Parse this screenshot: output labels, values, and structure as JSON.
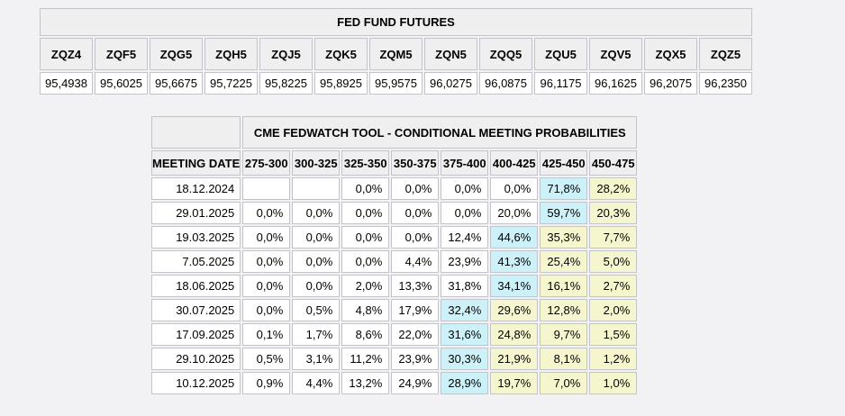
{
  "colors": {
    "page_bg": "#f2f2f4",
    "cell_border": "#c3c3cb",
    "header_bg": "#efeff0",
    "cell_bg": "#ffffff",
    "highlight_cyan": "#cdf1f8",
    "highlight_yellow": "#f6f6ce"
  },
  "futures": {
    "title": "FED FUND FUTURES",
    "columns": [
      "ZQZ4",
      "ZQF5",
      "ZQG5",
      "ZQH5",
      "ZQJ5",
      "ZQK5",
      "ZQM5",
      "ZQN5",
      "ZQQ5",
      "ZQU5",
      "ZQV5",
      "ZQX5",
      "ZQZ5"
    ],
    "values": [
      "95,4938",
      "95,6025",
      "95,6675",
      "95,7225",
      "95,8225",
      "95,8925",
      "95,9575",
      "96,0275",
      "96,0875",
      "96,1175",
      "96,1625",
      "96,2075",
      "96,2350"
    ]
  },
  "fedwatch": {
    "title": "CME FEDWATCH TOOL - CONDITIONAL MEETING PROBABILITIES",
    "date_header": "MEETING DATE",
    "rate_headers": [
      "275-300",
      "300-325",
      "325-350",
      "350-375",
      "375-400",
      "400-425",
      "425-450",
      "450-475"
    ],
    "rows": [
      {
        "date": "18.12.2024",
        "cells": [
          {
            "text": "",
            "hl": ""
          },
          {
            "text": "",
            "hl": ""
          },
          {
            "text": "0,0%",
            "hl": ""
          },
          {
            "text": "0,0%",
            "hl": ""
          },
          {
            "text": "0,0%",
            "hl": ""
          },
          {
            "text": "0,0%",
            "hl": ""
          },
          {
            "text": "71,8%",
            "hl": "cyan"
          },
          {
            "text": "28,2%",
            "hl": "yellow"
          }
        ]
      },
      {
        "date": "29.01.2025",
        "cells": [
          {
            "text": "0,0%",
            "hl": ""
          },
          {
            "text": "0,0%",
            "hl": ""
          },
          {
            "text": "0,0%",
            "hl": ""
          },
          {
            "text": "0,0%",
            "hl": ""
          },
          {
            "text": "0,0%",
            "hl": ""
          },
          {
            "text": "20,0%",
            "hl": ""
          },
          {
            "text": "59,7%",
            "hl": "cyan"
          },
          {
            "text": "20,3%",
            "hl": "yellow"
          }
        ]
      },
      {
        "date": "19.03.2025",
        "cells": [
          {
            "text": "0,0%",
            "hl": ""
          },
          {
            "text": "0,0%",
            "hl": ""
          },
          {
            "text": "0,0%",
            "hl": ""
          },
          {
            "text": "0,0%",
            "hl": ""
          },
          {
            "text": "12,4%",
            "hl": ""
          },
          {
            "text": "44,6%",
            "hl": "cyan"
          },
          {
            "text": "35,3%",
            "hl": "yellow"
          },
          {
            "text": "7,7%",
            "hl": "yellow"
          }
        ]
      },
      {
        "date": "7.05.2025",
        "cells": [
          {
            "text": "0,0%",
            "hl": ""
          },
          {
            "text": "0,0%",
            "hl": ""
          },
          {
            "text": "0,0%",
            "hl": ""
          },
          {
            "text": "4,4%",
            "hl": ""
          },
          {
            "text": "23,9%",
            "hl": ""
          },
          {
            "text": "41,3%",
            "hl": "cyan"
          },
          {
            "text": "25,4%",
            "hl": "yellow"
          },
          {
            "text": "5,0%",
            "hl": "yellow"
          }
        ]
      },
      {
        "date": "18.06.2025",
        "cells": [
          {
            "text": "0,0%",
            "hl": ""
          },
          {
            "text": "0,0%",
            "hl": ""
          },
          {
            "text": "2,0%",
            "hl": ""
          },
          {
            "text": "13,3%",
            "hl": ""
          },
          {
            "text": "31,8%",
            "hl": ""
          },
          {
            "text": "34,1%",
            "hl": "cyan"
          },
          {
            "text": "16,1%",
            "hl": "yellow"
          },
          {
            "text": "2,7%",
            "hl": "yellow"
          }
        ]
      },
      {
        "date": "30.07.2025",
        "cells": [
          {
            "text": "0,0%",
            "hl": ""
          },
          {
            "text": "0,5%",
            "hl": ""
          },
          {
            "text": "4,8%",
            "hl": ""
          },
          {
            "text": "17,9%",
            "hl": ""
          },
          {
            "text": "32,4%",
            "hl": "cyan"
          },
          {
            "text": "29,6%",
            "hl": "yellow"
          },
          {
            "text": "12,8%",
            "hl": "yellow"
          },
          {
            "text": "2,0%",
            "hl": "yellow"
          }
        ]
      },
      {
        "date": "17.09.2025",
        "cells": [
          {
            "text": "0,1%",
            "hl": ""
          },
          {
            "text": "1,7%",
            "hl": ""
          },
          {
            "text": "8,6%",
            "hl": ""
          },
          {
            "text": "22,0%",
            "hl": ""
          },
          {
            "text": "31,6%",
            "hl": "cyan"
          },
          {
            "text": "24,8%",
            "hl": "yellow"
          },
          {
            "text": "9,7%",
            "hl": "yellow"
          },
          {
            "text": "1,5%",
            "hl": "yellow"
          }
        ]
      },
      {
        "date": "29.10.2025",
        "cells": [
          {
            "text": "0,5%",
            "hl": ""
          },
          {
            "text": "3,1%",
            "hl": ""
          },
          {
            "text": "11,2%",
            "hl": ""
          },
          {
            "text": "23,9%",
            "hl": ""
          },
          {
            "text": "30,3%",
            "hl": "cyan"
          },
          {
            "text": "21,9%",
            "hl": "yellow"
          },
          {
            "text": "8,1%",
            "hl": "yellow"
          },
          {
            "text": "1,2%",
            "hl": "yellow"
          }
        ]
      },
      {
        "date": "10.12.2025",
        "cells": [
          {
            "text": "0,9%",
            "hl": ""
          },
          {
            "text": "4,4%",
            "hl": ""
          },
          {
            "text": "13,2%",
            "hl": ""
          },
          {
            "text": "24,9%",
            "hl": ""
          },
          {
            "text": "28,9%",
            "hl": "cyan"
          },
          {
            "text": "19,7%",
            "hl": "yellow"
          },
          {
            "text": "7,0%",
            "hl": "yellow"
          },
          {
            "text": "1,0%",
            "hl": "yellow"
          }
        ]
      }
    ]
  }
}
